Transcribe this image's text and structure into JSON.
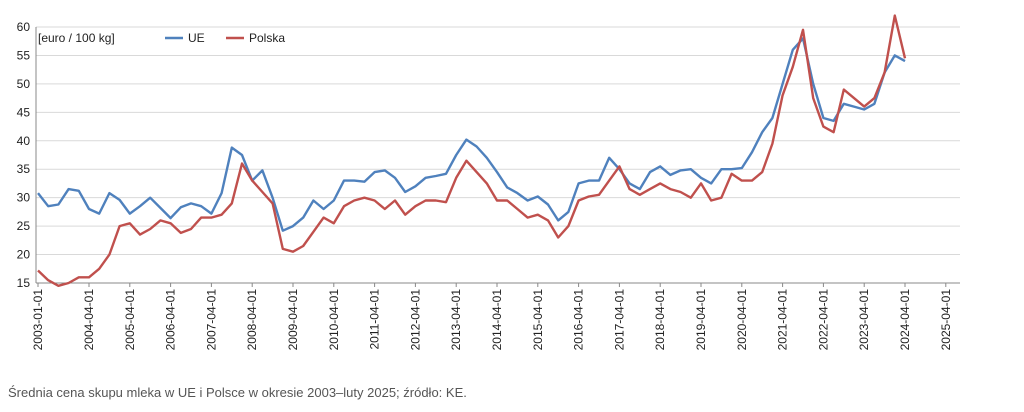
{
  "chart_data": {
    "type": "line",
    "unit_label": "[euro / 100 kg]",
    "caption": "Średnia cena skupu mleka w UE i Polsce w okresie 2003–luty 2025; źródło: KE.",
    "x_start": "2003-01",
    "x_step": "quarter",
    "ylim": [
      15,
      60
    ],
    "y_ticks": [
      15,
      20,
      25,
      30,
      35,
      40,
      45,
      50,
      55,
      60
    ],
    "x_tick_labels": [
      "2003-01-01",
      "2004-04-01",
      "2005-04-01",
      "2006-04-01",
      "2007-04-01",
      "2008-04-01",
      "2009-04-01",
      "2010-04-01",
      "2011-04-01",
      "2012-04-01",
      "2013-04-01",
      "2014-04-01",
      "2015-04-01",
      "2016-04-01",
      "2017-04-01",
      "2018-04-01",
      "2019-04-01",
      "2020-04-01",
      "2021-04-01",
      "2022-04-01",
      "2023-04-01",
      "2024-04-01",
      "2025-04-01"
    ],
    "grid": "horizontal",
    "legend_position": "top-left",
    "series": [
      {
        "name": "UE",
        "color": "#4f81bd",
        "values": [
          30.8,
          28.5,
          28.8,
          31.5,
          31.2,
          28.0,
          27.2,
          30.8,
          29.6,
          27.2,
          28.5,
          30.0,
          28.2,
          26.4,
          28.3,
          29.0,
          28.5,
          27.2,
          30.8,
          38.8,
          37.5,
          33.0,
          34.8,
          30.0,
          24.2,
          25.0,
          26.5,
          29.5,
          28.0,
          29.5,
          33.0,
          33.0,
          32.8,
          34.5,
          34.8,
          33.5,
          31.0,
          32.0,
          33.5,
          33.8,
          34.2,
          37.5,
          40.2,
          39.0,
          37.0,
          34.5,
          31.8,
          30.8,
          29.5,
          30.2,
          28.8,
          26.0,
          27.5,
          32.5,
          33.0,
          33.0,
          37.0,
          35.0,
          32.5,
          31.5,
          34.5,
          35.5,
          34.0,
          34.8,
          35.0,
          33.5,
          32.5,
          35.0,
          35.0,
          35.2,
          38.0,
          41.5,
          44.0,
          50.0,
          56.0,
          58.0,
          50.0,
          44.0,
          43.5,
          46.5,
          46.0,
          45.5,
          46.5,
          52.0,
          55.0,
          54.0
        ]
      },
      {
        "name": "Polska",
        "color": "#c0504d",
        "values": [
          17.2,
          15.5,
          14.5,
          15.0,
          16.0,
          16.0,
          17.5,
          20.0,
          25.0,
          25.5,
          23.5,
          24.5,
          26.0,
          25.5,
          23.8,
          24.5,
          26.5,
          26.5,
          27.0,
          29.0,
          36.0,
          33.0,
          31.0,
          29.0,
          21.0,
          20.5,
          21.5,
          24.0,
          26.5,
          25.5,
          28.5,
          29.5,
          30.0,
          29.5,
          28.0,
          29.5,
          27.0,
          28.5,
          29.5,
          29.5,
          29.2,
          33.5,
          36.5,
          34.5,
          32.5,
          29.5,
          29.5,
          28.0,
          26.5,
          27.0,
          26.0,
          23.0,
          25.0,
          29.5,
          30.2,
          30.5,
          33.0,
          35.5,
          31.5,
          30.5,
          31.5,
          32.5,
          31.5,
          31.0,
          30.0,
          32.5,
          29.5,
          30.0,
          34.2,
          33.0,
          33.0,
          34.5,
          39.5,
          48.0,
          53.0,
          59.5,
          47.5,
          42.5,
          41.5,
          49.0,
          47.5,
          46.0,
          47.5,
          52.0,
          62.0,
          54.5
        ]
      }
    ]
  }
}
